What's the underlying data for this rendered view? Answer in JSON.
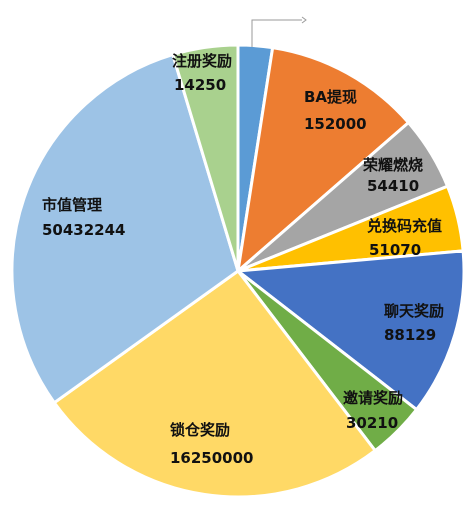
{
  "chart_data": {
    "type": "pie",
    "title": "",
    "slices": [
      {
        "label": "",
        "value": "",
        "display_share": 0.0245,
        "color": "#5b9bd5"
      },
      {
        "label": "BA提现",
        "value": "152000",
        "display_share": 0.1115,
        "color": "#ed7d31"
      },
      {
        "label": "荣耀燃烧",
        "value": "54410",
        "display_share": 0.0528,
        "color": "#a5a5a5"
      },
      {
        "label": "兑换码充值",
        "value": "51070",
        "display_share": 0.047,
        "color": "#ffc000"
      },
      {
        "label": "聊天奖励",
        "value": "88129",
        "display_share": 0.1192,
        "color": "#4472c4"
      },
      {
        "label": "邀请奖励",
        "value": "30210",
        "display_share": 0.0412,
        "color": "#70ad47"
      },
      {
        "label": "锁仓奖励",
        "value": "16250000",
        "display_share": 0.2548,
        "color": "#ffd966"
      },
      {
        "label": "市值管理",
        "value": "50432244",
        "display_share": 0.3024,
        "color": "#9dc3e6"
      },
      {
        "label": "注册奖励",
        "value": "14250",
        "display_share": 0.0466,
        "color": "#a9d18e"
      }
    ]
  }
}
